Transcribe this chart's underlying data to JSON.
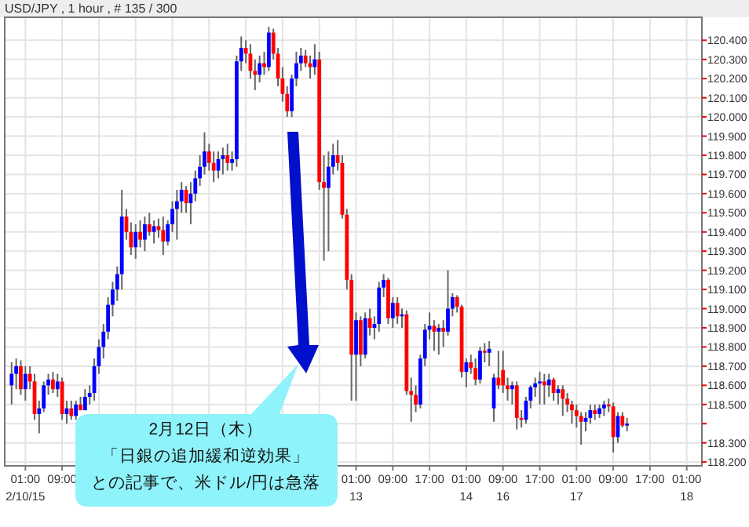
{
  "chart_data": {
    "type": "candlestick",
    "title": "USD/JPY , 1 hour , # 135 / 300",
    "annotations": [
      "2月12日（木）",
      "「日銀の追加緩和逆効果」",
      "との記事で、米ドル/円は急落"
    ],
    "grid": true,
    "ylim": [
      118.18,
      120.52
    ],
    "yticks": [
      {
        "value": 118.2,
        "label": "118.200"
      },
      {
        "value": 118.3,
        "label": "118.300"
      },
      {
        "value": 118.4,
        "label": null
      },
      {
        "value": 118.5,
        "label": "118.500"
      },
      {
        "value": 118.6,
        "label": "118.600"
      },
      {
        "value": 118.7,
        "label": "118.700"
      },
      {
        "value": 118.8,
        "label": "118.800"
      },
      {
        "value": 118.9,
        "label": "118.900"
      },
      {
        "value": 119.0,
        "label": "119.000"
      },
      {
        "value": 119.1,
        "label": "119.100"
      },
      {
        "value": 119.2,
        "label": "119.200"
      },
      {
        "value": 119.3,
        "label": "119.300"
      },
      {
        "value": 119.4,
        "label": "119.400"
      },
      {
        "value": 119.5,
        "label": "119.500"
      },
      {
        "value": 119.6,
        "label": "119.600"
      },
      {
        "value": 119.7,
        "label": "119.700"
      },
      {
        "value": 119.8,
        "label": "119.800"
      },
      {
        "value": 119.9,
        "label": "119.900"
      },
      {
        "value": 120.0,
        "label": "120.000"
      },
      {
        "value": 120.1,
        "label": "120.100"
      },
      {
        "value": 120.2,
        "label": "120.200"
      },
      {
        "value": 120.3,
        "label": "120.300"
      },
      {
        "value": 120.4,
        "label": "120.400"
      }
    ],
    "categories": [
      null,
      null,
      null,
      "01:00\n2/10/15",
      null,
      null,
      null,
      null,
      null,
      null,
      null,
      "09:00",
      null,
      null,
      null,
      null,
      null,
      null,
      null,
      null,
      null,
      null,
      null,
      null,
      null,
      null,
      null,
      null,
      null,
      null,
      null,
      null,
      null,
      null,
      null,
      null,
      null,
      null,
      null,
      null,
      null,
      null,
      null,
      null,
      null,
      null,
      null,
      null,
      null,
      null,
      null,
      null,
      null,
      null,
      null,
      null,
      null,
      null,
      null,
      null,
      null,
      null,
      null,
      null,
      null,
      null,
      null,
      null,
      null,
      null,
      null,
      null,
      null,
      null,
      null,
      "01:00\n13",
      null,
      null,
      null,
      null,
      null,
      null,
      null,
      "09:00",
      null,
      null,
      null,
      null,
      null,
      null,
      null,
      "17:00",
      null,
      null,
      null,
      null,
      null,
      null,
      null,
      "01:00\n14",
      null,
      null,
      null,
      null,
      null,
      null,
      null,
      "09:00\n16",
      null,
      null,
      null,
      null,
      null,
      null,
      null,
      "17:00",
      null,
      null,
      null,
      null,
      null,
      null,
      null,
      "01:00\n17",
      null,
      null,
      null,
      null,
      null,
      null,
      null,
      "09:00",
      null,
      null,
      null,
      null,
      null,
      null,
      null,
      "17:00",
      null,
      null,
      null,
      null,
      null,
      null,
      null,
      "01:00\n18"
    ],
    "colors": [
      "#0000ff",
      "#0000ff",
      "#ff0000",
      "#0000ff",
      "#ff0000",
      "#ff0000",
      "#0000ff",
      "#0000ff",
      "#0000ff",
      "#ff0000",
      "#0000ff",
      "#ff0000",
      "#0000ff",
      "#ff0000",
      "#0000ff",
      "#ff0000",
      "#0000ff",
      "#0000ff",
      "#0000ff",
      "#0000ff",
      "#0000ff",
      "#0000ff",
      "#0000ff",
      "#0000ff",
      "#0000ff",
      "#ff0000",
      "#ff0000",
      "#0000ff",
      "#ff0000",
      "#0000ff",
      "#ff0000",
      "#0000ff",
      "#ff0000",
      "#ff0000",
      "#0000ff",
      "#0000ff",
      "#0000ff",
      "#0000ff",
      "#ff0000",
      "#0000ff",
      "#0000ff",
      "#0000ff",
      "#0000ff",
      "#ff0000",
      "#ff0000",
      "#0000ff",
      "#0000ff",
      "#ff0000",
      "#0000ff",
      "#0000ff",
      "#0000ff",
      "#ff0000",
      "#ff0000",
      "#ff0000",
      "#0000ff",
      "#ff0000",
      "#0000ff",
      "#ff0000",
      "#ff0000",
      "#ff0000",
      "#ff0000",
      "#0000ff",
      "#0000ff",
      "#0000ff",
      "#ff0000",
      "#ff0000",
      "#0000ff",
      "#ff0000",
      "#ff0000",
      "#0000ff",
      "#0000ff",
      "#ff0000",
      "#ff0000",
      "#ff0000",
      "#ff0000",
      "#0000ff",
      "#ff0000",
      "#0000ff",
      "#ff0000",
      "#0000ff",
      "#0000ff",
      "#0000ff",
      "#ff0000",
      "#0000ff",
      "#ff0000",
      "#0000ff",
      "#ff0000",
      "#ff0000",
      "#ff0000",
      "#0000ff",
      "#0000ff",
      "#0000ff",
      "#ff0000",
      "#0000ff",
      "#ff0000",
      "#0000ff",
      "#0000ff",
      "#ff0000",
      "#ff0000",
      "#0000ff",
      "#ff0000",
      "#ff0000",
      "#0000ff",
      "#ff0000",
      "#0000ff",
      "#0000ff",
      "#ff0000",
      "#ff0000",
      "#ff0000",
      "#0000ff",
      "#ff0000",
      "#ff0000",
      "#0000ff",
      "#0000ff",
      "#0000ff",
      "#0000ff",
      "#ff0000",
      "#0000ff",
      "#ff0000",
      "#0000ff",
      "#ff0000",
      "#ff0000",
      "#ff0000",
      "#ff0000",
      "#ff0000",
      "#0000ff",
      "#0000ff",
      "#ff0000",
      "#0000ff",
      "#0000ff",
      "#ff0000",
      "#ff0000",
      "#0000ff",
      "#ff0000",
      "#0000ff",
      null,
      null,
      null,
      null,
      null,
      null,
      null,
      null,
      null,
      null,
      null,
      null,
      null
    ],
    "ohlc": [
      [
        118.6,
        118.72,
        118.5,
        118.66
      ],
      [
        118.66,
        118.74,
        118.58,
        118.7
      ],
      [
        118.7,
        118.73,
        118.55,
        118.58
      ],
      [
        118.58,
        118.7,
        118.52,
        118.66
      ],
      [
        118.66,
        118.7,
        118.58,
        118.62
      ],
      [
        118.62,
        118.66,
        118.42,
        118.45
      ],
      [
        118.45,
        118.52,
        118.35,
        118.48
      ],
      [
        118.48,
        118.62,
        118.46,
        118.6
      ],
      [
        118.6,
        118.66,
        118.55,
        118.63
      ],
      [
        118.63,
        118.67,
        118.56,
        118.58
      ],
      [
        118.58,
        118.66,
        118.54,
        118.62
      ],
      [
        118.62,
        118.64,
        118.42,
        118.45
      ],
      [
        118.45,
        118.52,
        118.4,
        118.48
      ],
      [
        118.48,
        118.52,
        118.42,
        118.44
      ],
      [
        118.44,
        118.52,
        118.42,
        118.5
      ],
      [
        118.5,
        118.54,
        118.47,
        118.47
      ],
      [
        118.47,
        118.58,
        118.47,
        118.54
      ],
      [
        118.54,
        118.6,
        118.5,
        118.56
      ],
      [
        118.56,
        118.74,
        118.52,
        118.7
      ],
      [
        118.7,
        118.84,
        118.66,
        118.8
      ],
      [
        118.8,
        118.92,
        118.74,
        118.88
      ],
      [
        118.88,
        119.06,
        118.84,
        119.02
      ],
      [
        119.02,
        119.14,
        118.96,
        119.1
      ],
      [
        119.1,
        119.22,
        119.04,
        119.18
      ],
      [
        119.18,
        119.62,
        119.1,
        119.48
      ],
      [
        119.48,
        119.52,
        119.36,
        119.4
      ],
      [
        119.4,
        119.45,
        119.28,
        119.32
      ],
      [
        119.32,
        119.44,
        119.26,
        119.4
      ],
      [
        119.4,
        119.46,
        119.32,
        119.36
      ],
      [
        119.36,
        119.48,
        119.3,
        119.44
      ],
      [
        119.44,
        119.5,
        119.38,
        119.4
      ],
      [
        119.4,
        119.46,
        119.34,
        119.43
      ],
      [
        119.43,
        119.47,
        119.37,
        119.41
      ],
      [
        119.41,
        119.48,
        119.28,
        119.35
      ],
      [
        119.35,
        119.46,
        119.33,
        119.44
      ],
      [
        119.44,
        119.56,
        119.4,
        119.52
      ],
      [
        119.52,
        119.62,
        119.36,
        119.56
      ],
      [
        119.56,
        119.66,
        119.5,
        119.62
      ],
      [
        119.62,
        119.64,
        119.5,
        119.55
      ],
      [
        119.55,
        119.66,
        119.44,
        119.6
      ],
      [
        119.6,
        119.72,
        119.56,
        119.68
      ],
      [
        119.68,
        119.8,
        119.64,
        119.74
      ],
      [
        119.74,
        119.92,
        119.7,
        119.82
      ],
      [
        119.82,
        119.86,
        119.72,
        119.76
      ],
      [
        119.76,
        119.82,
        119.66,
        119.72
      ],
      [
        119.72,
        119.82,
        119.68,
        119.78
      ],
      [
        119.78,
        119.84,
        119.7,
        119.8
      ],
      [
        119.8,
        119.86,
        119.72,
        119.76
      ],
      [
        119.76,
        119.82,
        119.72,
        119.78
      ],
      [
        119.78,
        120.32,
        119.74,
        120.29
      ],
      [
        120.29,
        120.42,
        120.24,
        120.36
      ],
      [
        120.36,
        120.4,
        120.28,
        120.33
      ],
      [
        120.33,
        120.38,
        120.2,
        120.24
      ],
      [
        120.24,
        120.3,
        120.14,
        120.22
      ],
      [
        120.22,
        120.32,
        120.18,
        120.28
      ],
      [
        120.28,
        120.34,
        120.22,
        120.26
      ],
      [
        120.26,
        120.47,
        120.24,
        120.44
      ],
      [
        120.44,
        120.46,
        120.3,
        120.33
      ],
      [
        120.33,
        120.36,
        120.16,
        120.2
      ],
      [
        120.2,
        120.26,
        120.08,
        120.12
      ],
      [
        120.12,
        120.16,
        120.0,
        120.03
      ],
      [
        120.03,
        120.22,
        120.0,
        120.2
      ],
      [
        120.2,
        120.34,
        120.16,
        120.28
      ],
      [
        120.28,
        120.36,
        120.24,
        120.32
      ],
      [
        120.32,
        120.35,
        120.26,
        120.28
      ],
      [
        120.28,
        120.32,
        120.2,
        120.26
      ],
      [
        120.26,
        120.38,
        120.22,
        120.3
      ],
      [
        120.3,
        120.34,
        119.62,
        119.66
      ],
      [
        119.66,
        119.8,
        119.25,
        119.63
      ],
      [
        119.63,
        119.82,
        119.3,
        119.74
      ],
      [
        119.74,
        119.86,
        119.7,
        119.8
      ],
      [
        119.8,
        119.88,
        119.72,
        119.76
      ],
      [
        119.76,
        119.8,
        119.47,
        119.49
      ],
      [
        119.49,
        119.52,
        119.1,
        119.15
      ],
      [
        119.15,
        119.18,
        118.52,
        118.76
      ],
      [
        118.76,
        118.98,
        118.52,
        118.94
      ],
      [
        118.94,
        118.96,
        118.7,
        118.76
      ],
      [
        118.76,
        118.98,
        118.74,
        118.95
      ],
      [
        118.95,
        119.0,
        118.86,
        118.9
      ],
      [
        118.9,
        118.96,
        118.84,
        118.92
      ],
      [
        118.92,
        119.14,
        118.88,
        119.11
      ],
      [
        119.11,
        119.18,
        119.06,
        119.15
      ],
      [
        119.15,
        119.16,
        118.92,
        118.95
      ],
      [
        118.95,
        119.06,
        118.9,
        119.03
      ],
      [
        119.03,
        119.06,
        118.92,
        118.96
      ],
      [
        118.96,
        119.0,
        118.9,
        118.97
      ],
      [
        118.97,
        118.99,
        118.55,
        118.57
      ],
      [
        118.57,
        118.64,
        118.41,
        118.55
      ],
      [
        118.55,
        118.6,
        118.46,
        118.5
      ],
      [
        118.5,
        118.76,
        118.48,
        118.74
      ],
      [
        118.74,
        118.92,
        118.7,
        118.89
      ],
      [
        118.89,
        118.98,
        118.84,
        118.91
      ],
      [
        118.91,
        118.94,
        118.78,
        118.88
      ],
      [
        118.88,
        118.92,
        118.76,
        118.9
      ],
      [
        118.9,
        118.94,
        118.8,
        118.88
      ],
      [
        118.88,
        119.2,
        118.86,
        119.0
      ],
      [
        119.0,
        119.08,
        118.96,
        119.06
      ],
      [
        119.06,
        119.07,
        118.98,
        119.01
      ],
      [
        119.01,
        119.02,
        118.64,
        118.67
      ],
      [
        118.67,
        118.74,
        118.59,
        118.72
      ],
      [
        118.72,
        118.76,
        118.66,
        118.69
      ],
      [
        118.69,
        118.74,
        118.6,
        118.63
      ],
      [
        118.63,
        118.8,
        118.61,
        118.78
      ],
      [
        118.78,
        118.82,
        118.72,
        118.77
      ],
      [
        118.77,
        118.83,
        118.7,
        118.79
      ],
      [
        118.48,
        118.66,
        118.41,
        118.64
      ],
      [
        118.64,
        118.78,
        118.58,
        118.6
      ],
      [
        118.68,
        118.78,
        118.56,
        118.6
      ],
      [
        118.6,
        118.64,
        118.52,
        118.58
      ],
      [
        118.58,
        118.62,
        118.5,
        118.6
      ],
      [
        118.6,
        118.62,
        118.37,
        118.43
      ],
      [
        118.43,
        118.47,
        118.38,
        118.42
      ],
      [
        118.42,
        118.54,
        118.4,
        118.52
      ],
      [
        118.52,
        118.6,
        118.48,
        118.59
      ],
      [
        118.59,
        118.64,
        118.54,
        118.61
      ],
      [
        118.61,
        118.67,
        118.5,
        118.62
      ],
      [
        118.62,
        118.66,
        118.5,
        118.6
      ],
      [
        118.6,
        118.66,
        118.54,
        118.63
      ],
      [
        118.63,
        118.64,
        118.52,
        118.56
      ],
      [
        118.56,
        118.6,
        118.5,
        118.58
      ],
      [
        118.58,
        118.6,
        118.44,
        118.53
      ],
      [
        118.53,
        118.56,
        118.46,
        118.5
      ],
      [
        118.5,
        118.52,
        118.4,
        118.47
      ],
      [
        118.47,
        118.5,
        118.38,
        118.44
      ],
      [
        118.44,
        118.46,
        118.29,
        118.41
      ],
      [
        118.41,
        118.46,
        118.36,
        118.43
      ],
      [
        118.43,
        118.5,
        118.4,
        118.47
      ],
      [
        118.47,
        118.5,
        118.42,
        118.45
      ],
      [
        118.45,
        118.5,
        118.43,
        118.48
      ],
      [
        118.48,
        118.52,
        118.44,
        118.5
      ],
      [
        118.5,
        118.53,
        118.46,
        118.49
      ],
      [
        118.49,
        118.51,
        118.25,
        118.33
      ],
      [
        118.33,
        118.46,
        118.3,
        118.44
      ],
      [
        118.44,
        118.46,
        118.38,
        118.39
      ],
      [
        118.39,
        118.43,
        118.36,
        118.4
      ],
      null,
      null,
      null,
      null,
      null,
      null,
      null,
      null,
      null,
      null,
      null,
      null,
      null
    ]
  }
}
